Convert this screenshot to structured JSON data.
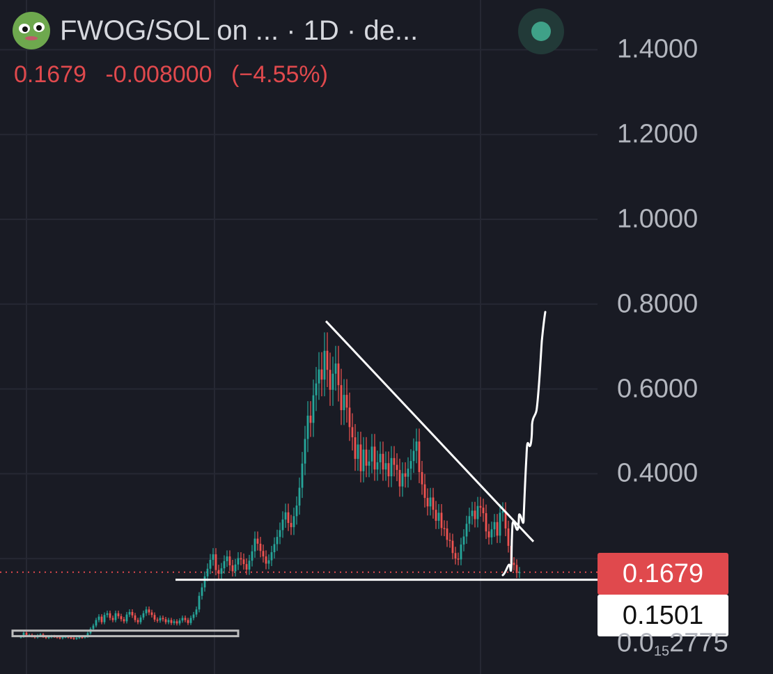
{
  "header": {
    "symbol": "FWOG/SOL on ...  · 1D · de...",
    "logo_icon": "frog-avatar-icon",
    "status_icon": "live-status-dot-icon"
  },
  "quote": {
    "last": "0.1679",
    "change": "-0.008000",
    "change_pct": "(−4.55%)"
  },
  "price_scale": {
    "ticks": [
      "1.4000",
      "1.2000",
      "1.0000",
      "0.8000",
      "0.6000",
      "0.4000"
    ],
    "current_price_tag": "0.1679",
    "line_price_tag": "0.1501",
    "bottom_label_main": "0.0",
    "bottom_label_sub": "15",
    "bottom_label_tail": "2775"
  },
  "colors": {
    "background": "#191b24",
    "up": "#26a69a",
    "down": "#ef5350",
    "current_price": "#e0494d",
    "drawing": "#ffffff"
  },
  "chart_data": {
    "type": "candlestick",
    "title": "FWOG/SOL on ...  · 1D · de...",
    "timeframe": "1D",
    "ylim": [
      0.0,
      1.4
    ],
    "last_price": 0.1679,
    "close_series": [
      0.016,
      0.025,
      0.018,
      0.02,
      0.017,
      0.014,
      0.019,
      0.021,
      0.016,
      0.013,
      0.015,
      0.017,
      0.016,
      0.014,
      0.012,
      0.015,
      0.016,
      0.014,
      0.013,
      0.011,
      0.013,
      0.015,
      0.014,
      0.016,
      0.024,
      0.034,
      0.042,
      0.055,
      0.063,
      0.05,
      0.067,
      0.071,
      0.06,
      0.055,
      0.071,
      0.064,
      0.057,
      0.052,
      0.068,
      0.074,
      0.066,
      0.055,
      0.05,
      0.061,
      0.071,
      0.08,
      0.073,
      0.067,
      0.056,
      0.054,
      0.06,
      0.057,
      0.05,
      0.055,
      0.048,
      0.052,
      0.047,
      0.054,
      0.06,
      0.055,
      0.048,
      0.06,
      0.068,
      0.08,
      0.112,
      0.132,
      0.158,
      0.176,
      0.197,
      0.21,
      0.173,
      0.164,
      0.177,
      0.194,
      0.205,
      0.184,
      0.17,
      0.186,
      0.201,
      0.198,
      0.187,
      0.174,
      0.195,
      0.217,
      0.247,
      0.235,
      0.218,
      0.205,
      0.188,
      0.196,
      0.215,
      0.234,
      0.251,
      0.267,
      0.292,
      0.309,
      0.284,
      0.274,
      0.3,
      0.325,
      0.367,
      0.424,
      0.482,
      0.537,
      0.52,
      0.585,
      0.613,
      0.646,
      0.622,
      0.69,
      0.645,
      0.598,
      0.636,
      0.66,
      0.609,
      0.55,
      0.586,
      0.556,
      0.51,
      0.486,
      0.435,
      0.469,
      0.406,
      0.457,
      0.419,
      0.429,
      0.464,
      0.41,
      0.427,
      0.447,
      0.41,
      0.425,
      0.394,
      0.437,
      0.421,
      0.409,
      0.37,
      0.401,
      0.393,
      0.412,
      0.43,
      0.454,
      0.476,
      0.404,
      0.375,
      0.343,
      0.323,
      0.344,
      0.315,
      0.289,
      0.308,
      0.272,
      0.271,
      0.244,
      0.242,
      0.213,
      0.2,
      0.198,
      0.233,
      0.252,
      0.282,
      0.3,
      0.313,
      0.293,
      0.324,
      0.32,
      0.307,
      0.264,
      0.25,
      0.269,
      0.286,
      0.254,
      0.308,
      0.312,
      0.271,
      0.23,
      0.19,
      0.185,
      0.166,
      0.168
    ],
    "annotations": [
      {
        "type": "trendline",
        "label": "descending resistance",
        "from": {
          "bar": 138,
          "price": 0.76
        },
        "to": {
          "bar": 222,
          "price": 0.24
        }
      },
      {
        "type": "horizontal_support",
        "price": 0.1501
      },
      {
        "type": "consolidation_box",
        "price_low": 0.017,
        "price_high": 0.03
      },
      {
        "type": "projection_path",
        "description": "hand-drawn breakout path",
        "end_price": 0.79
      }
    ]
  }
}
